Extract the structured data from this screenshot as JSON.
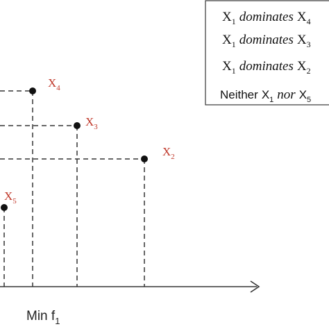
{
  "diagram": {
    "x_axis_label": {
      "text": "Min f",
      "sub": "1"
    },
    "point_color": "#c0392b",
    "points": [
      {
        "name": "X",
        "sub": "4"
      },
      {
        "name": "X",
        "sub": "3"
      },
      {
        "name": "X",
        "sub": "2"
      },
      {
        "name": "X",
        "sub": "5"
      }
    ]
  },
  "legend": {
    "lines": [
      {
        "a": "X",
        "a_sub": "1",
        "rel": "dominates",
        "b": "X",
        "b_sub": "4"
      },
      {
        "a": "X",
        "a_sub": "1",
        "rel": "dominates",
        "b": "X",
        "b_sub": "3"
      },
      {
        "a": "X",
        "a_sub": "1",
        "rel": "dominates",
        "b": "X",
        "b_sub": "2"
      },
      {
        "pre": "Neither",
        "a": "X",
        "a_sub": "1",
        "rel": "nor",
        "b": "X",
        "b_sub": "5"
      }
    ]
  }
}
